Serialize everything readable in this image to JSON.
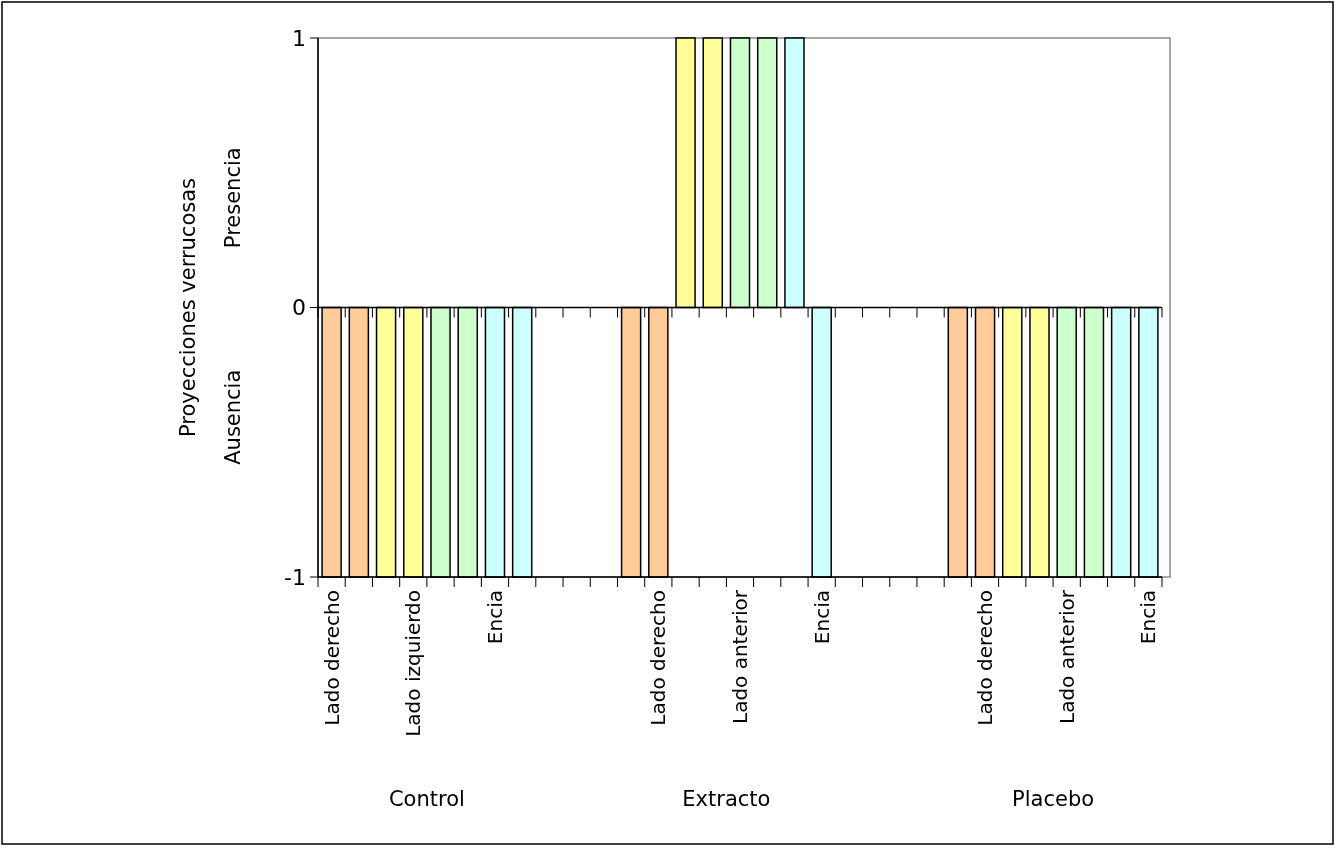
{
  "chart_data": {
    "type": "bar",
    "categories": [
      "Lado derecho",
      null,
      null,
      "Lado izquierdo",
      null,
      null,
      "Encia",
      null,
      null,
      null,
      null,
      null,
      "Lado derecho",
      null,
      null,
      "Lado anterior",
      null,
      null,
      "Encia",
      null,
      null,
      null,
      null,
      null,
      "Lado derecho",
      null,
      null,
      "Lado anterior",
      null,
      null,
      "Encia"
    ],
    "values": [
      -1,
      -1,
      -1,
      -1,
      -1,
      -1,
      -1,
      -1,
      null,
      null,
      null,
      -1,
      -1,
      1,
      1,
      1,
      1,
      1,
      -1,
      null,
      null,
      null,
      null,
      -1,
      -1,
      -1,
      -1,
      -1,
      -1,
      -1,
      -1
    ],
    "colors": [
      "#ffcc99",
      "#ffcc99",
      "#ffff99",
      "#ffff99",
      "#ccffcc",
      "#ccffcc",
      "#ccffff",
      "#ccffff",
      null,
      null,
      null,
      "#ffcc99",
      "#ffcc99",
      "#ffff99",
      "#ffff99",
      "#ccffcc",
      "#ccffcc",
      "#ccffff",
      "#ccffff",
      null,
      null,
      null,
      null,
      "#ffcc99",
      "#ffcc99",
      "#ffff99",
      "#ffff99",
      "#ccffcc",
      "#ccffcc",
      "#ccffff",
      "#ccffff"
    ],
    "ylabel": "Proyecciones verrucosas",
    "annotations": [
      "Control",
      "Extracto",
      "Placebo",
      "Presencia",
      "Ausencia"
    ],
    "ylim": [
      -1,
      1
    ],
    "yticks": [
      -1,
      0,
      1
    ]
  }
}
